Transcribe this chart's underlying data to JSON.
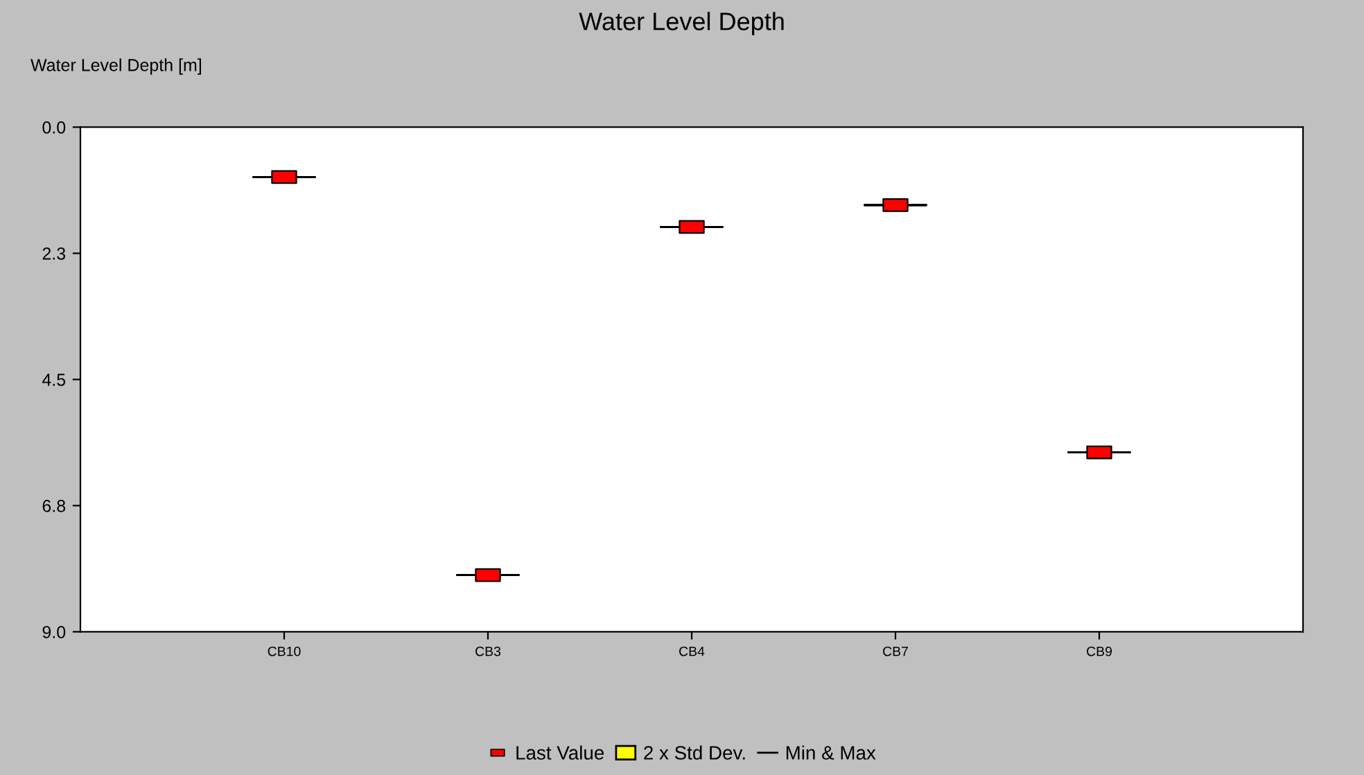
{
  "chart_data": {
    "type": "scatter",
    "title": "Water Level Depth",
    "ylabel": "Water Level Depth [m]",
    "categories": [
      "CB10",
      "CB3",
      "CB4",
      "CB7",
      "CB9"
    ],
    "ylim": [
      9.0,
      0.0
    ],
    "yticks": [
      {
        "value": 0,
        "label": "0.0"
      },
      {
        "value": 2.25,
        "label": "2.3"
      },
      {
        "value": 4.5,
        "label": "4.5"
      },
      {
        "value": 6.75,
        "label": "6.8"
      },
      {
        "value": 9,
        "label": "9.0"
      }
    ],
    "series": [
      {
        "name": "Last Value",
        "marker": "square",
        "color": "#ff0000",
        "values": [
          0.89,
          7.99,
          1.78,
          1.39,
          5.8
        ]
      },
      {
        "name": "2 x Std Dev.",
        "type": "box",
        "color": "#ffff00",
        "boxes": [
          null,
          null,
          null,
          null,
          null
        ]
      },
      {
        "name": "Min & Max",
        "type": "box",
        "color": "#000000",
        "boxes": [
          {
            "low": 0.89,
            "q1": 0.89,
            "median": 0.89,
            "q3": 0.89,
            "high": 0.89
          },
          {
            "low": 7.99,
            "q1": 7.99,
            "median": 7.99,
            "q3": 7.99,
            "high": 7.99
          },
          {
            "low": 1.78,
            "q1": 1.78,
            "median": 1.78,
            "q3": 1.78,
            "high": 1.78
          },
          {
            "low": 1.39,
            "q1": 1.39,
            "median": 1.39,
            "q3": 1.39,
            "high": 1.39
          },
          {
            "low": 5.8,
            "q1": 5.8,
            "median": 5.8,
            "q3": 5.8,
            "high": 5.8
          }
        ]
      }
    ],
    "grid": false,
    "legend": "bottom"
  }
}
